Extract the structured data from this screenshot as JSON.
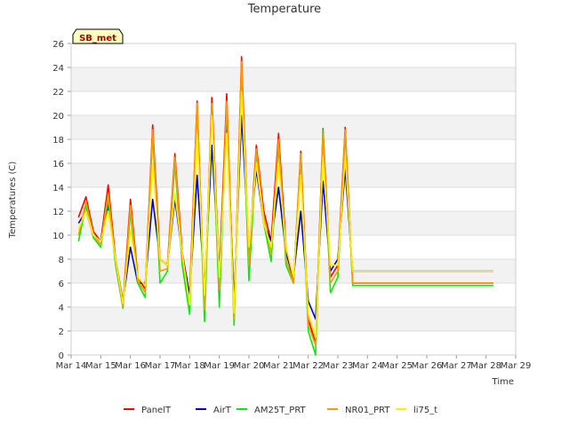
{
  "chart_data": {
    "type": "line",
    "title": "Temperature",
    "xlabel": "Time",
    "ylabel": "Temperatures (C)",
    "site_label": "SB_met",
    "ylim": [
      0,
      26
    ],
    "yticks": [
      0,
      2,
      4,
      6,
      8,
      10,
      12,
      14,
      16,
      18,
      20,
      22,
      24,
      26
    ],
    "xlim": [
      "Mar 14",
      "Mar 29"
    ],
    "xticks": [
      "Mar 14",
      "Mar 15",
      "Mar 16",
      "Mar 17",
      "Mar 18",
      "Mar 19",
      "Mar 20",
      "Mar 21",
      "Mar 22",
      "Mar 23",
      "Mar 24",
      "Mar 25",
      "Mar 26",
      "Mar 27",
      "Mar 28",
      "Mar 29"
    ],
    "grid": "horizontal bands",
    "legend_position": "bottom",
    "x": [
      14.25,
      14.5,
      14.75,
      15.0,
      15.25,
      15.5,
      15.75,
      16.0,
      16.25,
      16.5,
      16.75,
      17.0,
      17.25,
      17.5,
      17.75,
      18.0,
      18.25,
      18.5,
      18.75,
      19.0,
      19.25,
      19.5,
      19.75,
      20.0,
      20.25,
      20.5,
      20.75,
      21.0,
      21.25,
      21.5,
      21.75,
      22.0,
      22.25,
      22.5,
      22.75,
      23.0,
      23.25,
      23.5,
      23.75,
      24.0,
      24.25,
      24.5,
      24.75,
      25.0,
      25.25,
      25.5,
      25.75,
      26.0,
      26.25,
      26.5,
      26.75,
      27.0,
      27.25,
      27.5,
      27.75,
      28.0,
      28.25
    ],
    "series": [
      {
        "name": "PanelT",
        "color": "#ff0000",
        "values": [
          11.5,
          13.2,
          10.3,
          9.5,
          14.2,
          8.0,
          4.2,
          13.0,
          6.5,
          5.5,
          19.2,
          8.0,
          7.5,
          16.8,
          8.5,
          5.0,
          21.2,
          4.0,
          21.5,
          6.5,
          21.8,
          3.0,
          24.9,
          8.0,
          17.5,
          12.0,
          9.5,
          18.5,
          9.0,
          6.0,
          17.0,
          3.0,
          1.0,
          18.9,
          6.5,
          7.5,
          19.0,
          6.0,
          6.0,
          6.0,
          6.0,
          6.0,
          6.0,
          6.0,
          6.0,
          6.0,
          6.0,
          6.0,
          6.0,
          6.0,
          6.0,
          6.0,
          6.0,
          6.0,
          6.0,
          6.0,
          6.0
        ]
      },
      {
        "name": "AirT",
        "color": "#0000cc",
        "values": [
          11.0,
          12.0,
          10.0,
          9.5,
          12.5,
          8.0,
          4.5,
          9.0,
          6.0,
          6.0,
          13.0,
          8.0,
          7.5,
          13.0,
          8.5,
          5.0,
          15.0,
          5.5,
          17.5,
          7.0,
          19.5,
          4.5,
          20.0,
          9.0,
          15.5,
          11.0,
          9.5,
          14.0,
          8.5,
          6.5,
          12.0,
          4.5,
          3.0,
          14.5,
          7.0,
          8.0,
          15.5,
          7.0,
          7.0,
          7.0,
          7.0,
          7.0,
          7.0,
          7.0,
          7.0,
          7.0,
          7.0,
          7.0,
          7.0,
          7.0,
          7.0,
          7.0,
          7.0,
          7.0,
          7.0,
          7.0,
          7.0
        ]
      },
      {
        "name": "AM25T_PRT",
        "color": "#00ee00",
        "values": [
          9.5,
          12.5,
          9.8,
          9.0,
          13.0,
          7.5,
          3.9,
          12.0,
          6.0,
          4.8,
          18.5,
          6.0,
          7.0,
          16.0,
          7.5,
          3.4,
          20.8,
          2.8,
          20.8,
          4.0,
          21.0,
          2.5,
          24.0,
          6.2,
          17.0,
          11.0,
          7.8,
          17.5,
          7.5,
          6.0,
          16.5,
          2.0,
          0.0,
          18.8,
          5.2,
          6.5,
          18.5,
          5.8,
          5.8,
          5.8,
          5.8,
          5.8,
          5.8,
          5.8,
          5.8,
          5.8,
          5.8,
          5.8,
          5.8,
          5.8,
          5.8,
          5.8,
          5.8,
          5.8,
          5.8,
          5.8,
          5.8
        ]
      },
      {
        "name": "NR01_PRT",
        "color": "#ff9900",
        "values": [
          10.0,
          12.8,
          10.0,
          9.2,
          13.5,
          7.8,
          4.0,
          12.5,
          6.2,
          5.2,
          18.8,
          7.0,
          7.2,
          16.5,
          8.0,
          4.5,
          21.0,
          3.8,
          21.0,
          5.5,
          21.2,
          3.0,
          24.5,
          7.5,
          17.2,
          11.5,
          8.5,
          18.0,
          8.0,
          6.0,
          16.8,
          2.5,
          0.8,
          18.5,
          6.0,
          7.0,
          18.8,
          6.0,
          6.0,
          6.0,
          6.0,
          6.0,
          6.0,
          6.0,
          6.0,
          6.0,
          6.0,
          6.0,
          6.0,
          6.0,
          6.0,
          6.0,
          6.0,
          6.0,
          6.0,
          6.0,
          6.0
        ]
      },
      {
        "name": "li75_t",
        "color": "#ffee00",
        "values": [
          10.5,
          12.0,
          10.0,
          9.5,
          12.0,
          8.0,
          4.3,
          10.5,
          6.5,
          5.8,
          16.0,
          8.0,
          7.5,
          13.5,
          8.5,
          4.2,
          18.5,
          5.0,
          20.0,
          6.5,
          18.5,
          3.5,
          22.0,
          9.0,
          16.0,
          11.0,
          9.0,
          16.0,
          9.0,
          6.5,
          15.0,
          3.5,
          1.5,
          16.5,
          7.5,
          7.5,
          16.5,
          7.0,
          7.0,
          7.0,
          7.0,
          7.0,
          7.0,
          7.0,
          7.0,
          7.0,
          7.0,
          7.0,
          7.0,
          7.0,
          7.0,
          7.0,
          7.0,
          7.0,
          7.0,
          7.0,
          7.0
        ]
      }
    ]
  }
}
